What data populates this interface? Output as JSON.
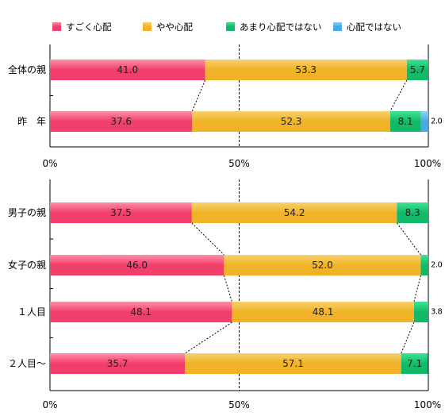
{
  "chart_data": [
    {
      "type": "bar",
      "orientation": "horizontal",
      "stacked": true,
      "categories": [
        "全体の親",
        "昨　年"
      ],
      "series": [
        {
          "name": "すごく心配",
          "values": [
            41.0,
            37.6
          ]
        },
        {
          "name": "やや心配",
          "values": [
            53.3,
            52.3
          ]
        },
        {
          "name": "あまり心配ではない",
          "values": [
            5.7,
            8.1
          ]
        },
        {
          "name": "心配ではない",
          "values": [
            0,
            2.0
          ]
        }
      ],
      "labels": [
        [
          "41.0",
          "37.6"
        ],
        [
          "53.3",
          "52.3"
        ],
        [
          "5.7",
          "8.1"
        ],
        [
          "",
          "2.0"
        ]
      ],
      "xlim": [
        0,
        100
      ],
      "xticks": [
        "0%",
        "50%",
        "100%"
      ]
    },
    {
      "type": "bar",
      "orientation": "horizontal",
      "stacked": true,
      "categories": [
        "男子の親",
        "女子の親",
        "１人目",
        "２人目～"
      ],
      "series": [
        {
          "name": "すごく心配",
          "values": [
            37.5,
            46.0,
            48.1,
            35.7
          ]
        },
        {
          "name": "やや心配",
          "values": [
            54.2,
            52.0,
            48.1,
            57.1
          ]
        },
        {
          "name": "あまり心配ではない",
          "values": [
            8.3,
            2.0,
            3.8,
            7.1
          ]
        },
        {
          "name": "心配ではない",
          "values": [
            0,
            0,
            0,
            0
          ]
        }
      ],
      "labels": [
        [
          "37.5",
          "46.0",
          "48.1",
          "35.7"
        ],
        [
          "54.2",
          "52.0",
          "48.1",
          "57.1"
        ],
        [
          "8.3",
          "2.0",
          "3.8",
          "7.1"
        ],
        [
          "",
          "",
          "",
          ""
        ]
      ],
      "xlim": [
        0,
        100
      ],
      "xticks": [
        "0%",
        "50%",
        "100%"
      ]
    }
  ],
  "legend": {
    "position": "top",
    "items": [
      {
        "label": "すごく心配",
        "color": "#f23e6b"
      },
      {
        "label": "やや心配",
        "color": "#f0b226"
      },
      {
        "label": "あまり心配ではない",
        "color": "#11b968"
      },
      {
        "label": "心配ではない",
        "color": "#45a9e4"
      }
    ]
  },
  "colors": {
    "series_fill": [
      "#f23e6b",
      "#f0b226",
      "#11b968",
      "#45a9e4"
    ],
    "series_top": [
      "#ff8fa8",
      "#f8d26e",
      "#3ee493",
      "#8fd4f6"
    ]
  }
}
